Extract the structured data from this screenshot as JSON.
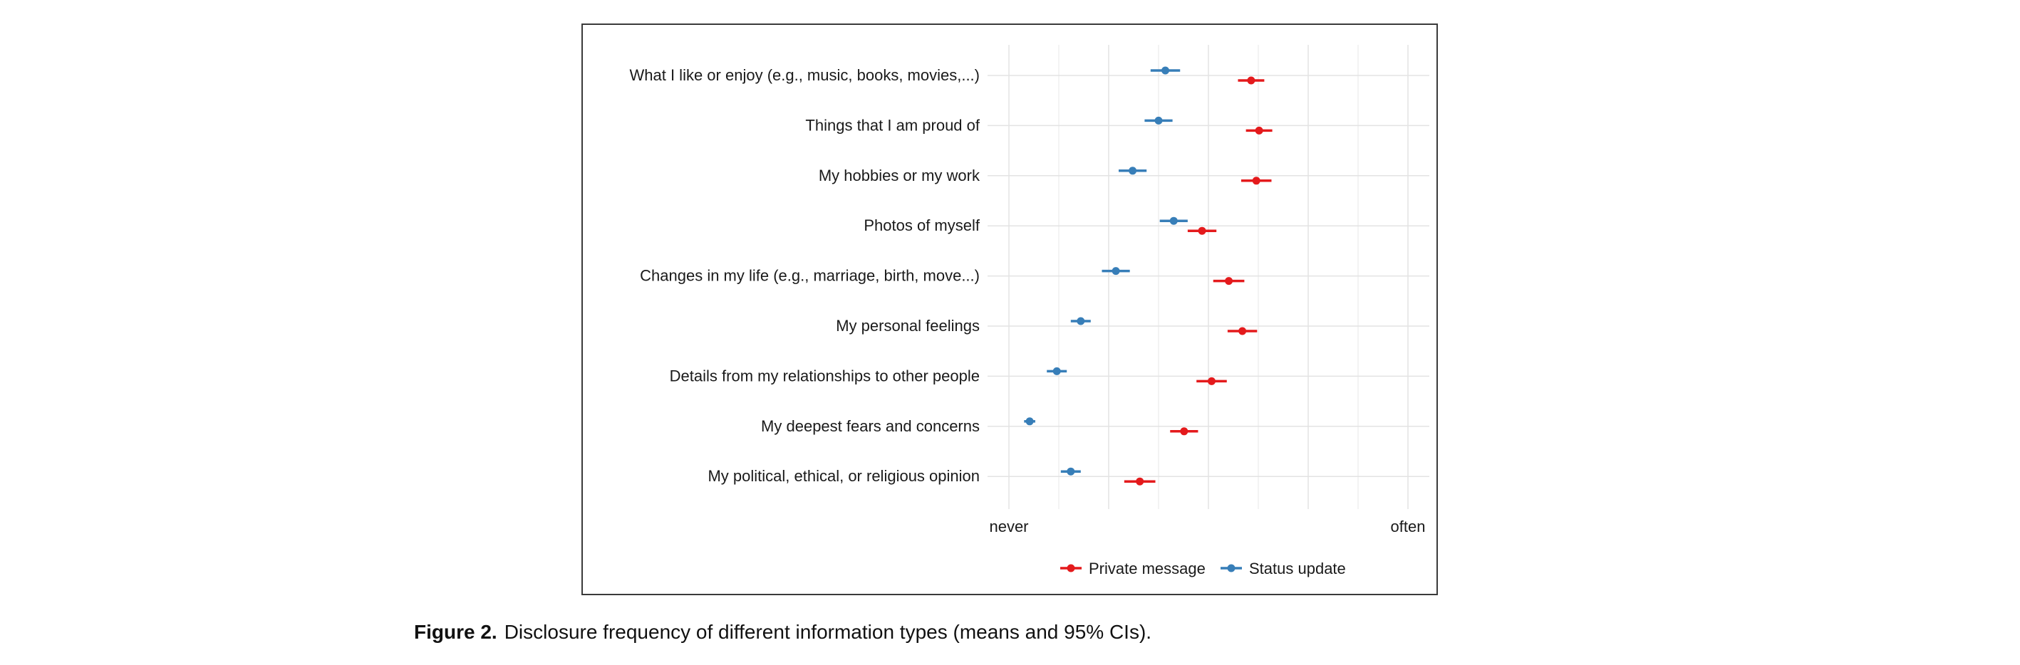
{
  "chart_data": {
    "type": "scatter",
    "subtype": "dot-whisker",
    "categories": [
      "What I like or enjoy (e.g., music, books, movies,...)",
      "Things that I am proud of",
      "My hobbies or my work",
      "Photos of myself",
      "Changes in my life (e.g., marriage, birth, move...)",
      "My personal feelings",
      "Details from my relationships to other people",
      "My deepest fears and concerns",
      "My political, ethical, or religious opinion"
    ],
    "x_tick_labels": [
      "never",
      "often"
    ],
    "xlim": [
      0,
      1
    ],
    "grid": true,
    "legend_position": "bottom",
    "series": [
      {
        "name": "Private message",
        "color": "#e41a1c",
        "means": [
          0.607,
          0.627,
          0.62,
          0.484,
          0.551,
          0.585,
          0.508,
          0.439,
          0.328
        ],
        "ci_low": [
          0.574,
          0.594,
          0.582,
          0.448,
          0.512,
          0.548,
          0.47,
          0.404,
          0.289
        ],
        "ci_high": [
          0.64,
          0.66,
          0.658,
          0.52,
          0.59,
          0.622,
          0.546,
          0.474,
          0.367
        ]
      },
      {
        "name": "Status update",
        "color": "#377eb8",
        "means": [
          0.392,
          0.375,
          0.31,
          0.413,
          0.268,
          0.18,
          0.12,
          0.052,
          0.155
        ],
        "ci_low": [
          0.355,
          0.34,
          0.275,
          0.378,
          0.233,
          0.155,
          0.095,
          0.038,
          0.13
        ],
        "ci_high": [
          0.429,
          0.41,
          0.345,
          0.448,
          0.303,
          0.205,
          0.145,
          0.066,
          0.18
        ]
      }
    ]
  },
  "caption": {
    "label": "Figure 2.",
    "text": "Disclosure frequency of different information types (means and 95% CIs)."
  }
}
